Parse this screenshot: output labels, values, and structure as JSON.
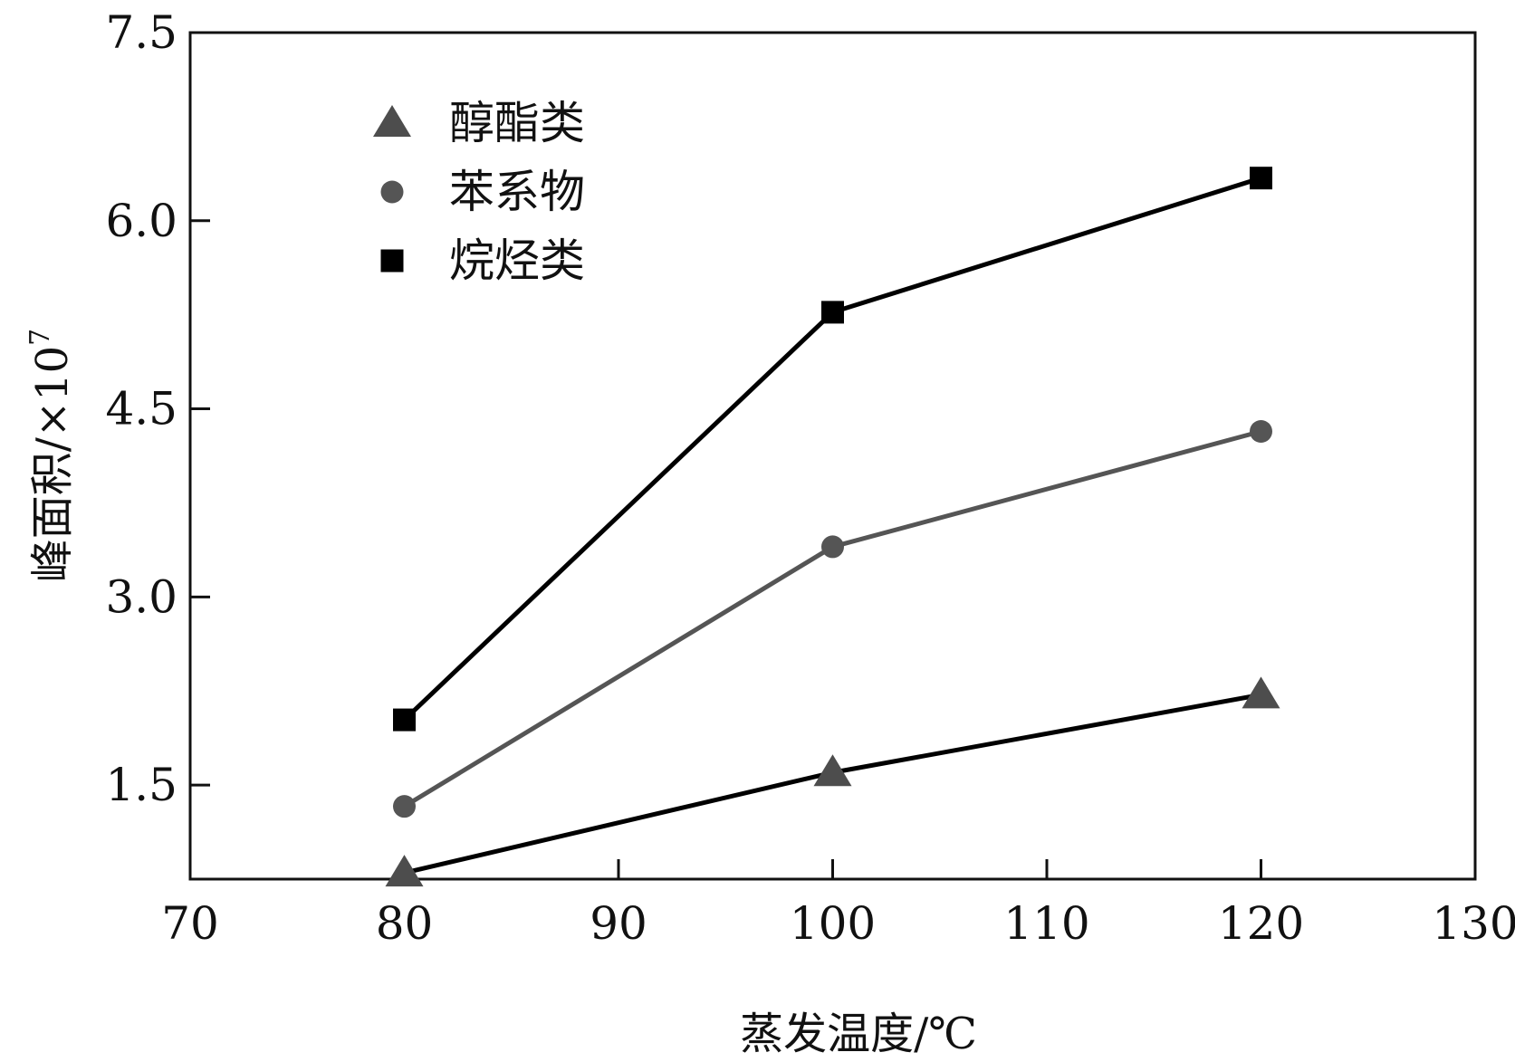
{
  "chart_data": {
    "type": "line",
    "xlabel": "蒸发温度/℃",
    "ylabel": "峰面积/×10",
    "ylabel_exponent": "7",
    "xlim": [
      70,
      130
    ],
    "ylim": [
      0.75,
      7.5
    ],
    "x_ticks": [
      70,
      80,
      90,
      100,
      110,
      120,
      130
    ],
    "x_tick_labels": [
      "70",
      "80",
      "90",
      "100",
      "110",
      "120",
      "130"
    ],
    "y_ticks": [
      1.5,
      3.0,
      4.5,
      6.0,
      7.5
    ],
    "y_tick_labels": [
      "1.5",
      "3.0",
      "4.5",
      "6.0",
      "7.5"
    ],
    "x": [
      80,
      100,
      120
    ],
    "grid": false,
    "legend_position": "top-left",
    "series": [
      {
        "name": "醇酯类",
        "marker": "triangle",
        "color": "#4d4d4d",
        "line_color": "#000000",
        "values": [
          0.8,
          1.6,
          2.22
        ]
      },
      {
        "name": "苯系物",
        "marker": "circle",
        "color": "#555555",
        "line_color": "#555555",
        "values": [
          1.33,
          3.4,
          4.32
        ]
      },
      {
        "name": "烷烃类",
        "marker": "square",
        "color": "#000000",
        "line_color": "#000000",
        "values": [
          2.02,
          5.27,
          6.34
        ]
      }
    ]
  }
}
